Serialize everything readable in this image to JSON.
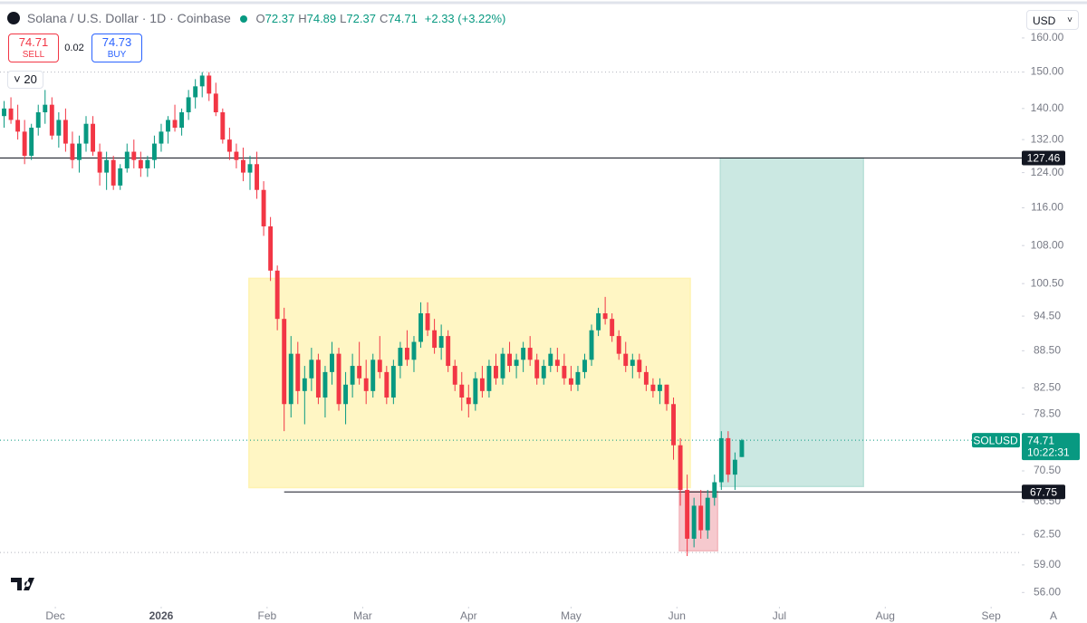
{
  "header": {
    "title": "Solana / U.S. Dollar · 1D · Coinbase",
    "ohlc": [
      {
        "label": "O",
        "value": 72.37
      },
      {
        "label": "H",
        "value": 74.89
      },
      {
        "label": "L",
        "value": 72.37
      },
      {
        "label": "C",
        "value": 74.71
      }
    ],
    "change": "+2.33 (+3.22%)"
  },
  "trade": {
    "sell": {
      "price": 74.71,
      "label": "SELL"
    },
    "spread": 0.02,
    "buy": {
      "price": 74.73,
      "label": "BUY"
    }
  },
  "indicator_count": 20,
  "currency": "USD",
  "corner": "A",
  "chart_data": {
    "type": "candlestick",
    "log_scale": true,
    "grid": false,
    "up_color": "#089981",
    "down_color": "#f23645",
    "xlim": [
      -47.2,
      252.5
    ],
    "xticks": [
      {
        "value": -31,
        "label": "Dec"
      },
      {
        "value": 0,
        "label": "2026"
      },
      {
        "value": 31,
        "label": "Feb"
      },
      {
        "value": 59,
        "label": "Mar"
      },
      {
        "value": 90,
        "label": "Apr"
      },
      {
        "value": 120,
        "label": "May"
      },
      {
        "value": 151,
        "label": "Jun"
      },
      {
        "value": 181,
        "label": "Jul"
      },
      {
        "value": 212,
        "label": "Aug"
      },
      {
        "value": 243,
        "label": "Sep"
      }
    ],
    "ylim": [
      54.7,
      169
    ],
    "yticks": [
      {
        "value": 160,
        "label": "160.00"
      },
      {
        "value": 150,
        "label": "150.00"
      },
      {
        "value": 140,
        "label": "140.00"
      },
      {
        "value": 132,
        "label": "132.00"
      },
      {
        "value": 124,
        "label": "124.00"
      },
      {
        "value": 116,
        "label": "116.00"
      },
      {
        "value": 108,
        "label": "108.00"
      },
      {
        "value": 100.5,
        "label": "100.50"
      },
      {
        "value": 94.5,
        "label": "94.50"
      },
      {
        "value": 88.5,
        "label": "88.50"
      },
      {
        "value": 82.5,
        "label": "82.50"
      },
      {
        "value": 78.5,
        "label": "78.50"
      },
      {
        "value": 70.5,
        "label": "70.50"
      },
      {
        "value": 66.5,
        "label": "66.50"
      },
      {
        "value": 62.5,
        "label": "62.50"
      },
      {
        "value": 59,
        "label": "59.00"
      },
      {
        "value": 56,
        "label": "56.00"
      }
    ],
    "x": [
      -46,
      -44,
      -42,
      -40,
      -38,
      -36,
      -34,
      -32,
      -30,
      -28,
      -26,
      -24,
      -22,
      -20,
      -18,
      -16,
      -14,
      -12,
      -10,
      -8,
      -6,
      -4,
      -2,
      0,
      2,
      4,
      6,
      8,
      10,
      12,
      14,
      16,
      18,
      20,
      22,
      24,
      26,
      28,
      30,
      32,
      34,
      36,
      38,
      40,
      42,
      44,
      46,
      48,
      50,
      52,
      54,
      56,
      58,
      60,
      62,
      64,
      66,
      68,
      70,
      72,
      74,
      76,
      78,
      80,
      82,
      84,
      86,
      88,
      90,
      92,
      94,
      96,
      98,
      100,
      102,
      104,
      106,
      108,
      110,
      112,
      114,
      116,
      118,
      120,
      122,
      124,
      126,
      128,
      130,
      132,
      134,
      136,
      138,
      140,
      142,
      144,
      146,
      148,
      150,
      152,
      154,
      156,
      158,
      160,
      162,
      164,
      166,
      168,
      170
    ],
    "candles": [
      [
        138,
        142,
        135,
        140
      ],
      [
        140,
        143,
        136,
        137
      ],
      [
        137,
        141,
        132,
        134
      ],
      [
        134,
        137,
        126,
        128
      ],
      [
        128,
        136,
        127,
        135
      ],
      [
        135,
        141,
        133,
        139
      ],
      [
        139,
        145,
        136,
        141
      ],
      [
        141,
        143,
        132,
        133
      ],
      [
        133,
        139,
        130,
        137
      ],
      [
        137,
        140,
        129,
        131
      ],
      [
        131,
        134,
        125,
        127
      ],
      [
        127,
        133,
        124,
        131
      ],
      [
        131,
        138,
        129,
        136
      ],
      [
        136,
        138,
        128,
        129
      ],
      [
        129,
        131,
        121,
        124
      ],
      [
        124,
        129,
        120,
        127
      ],
      [
        127,
        128,
        120,
        121
      ],
      [
        121,
        126,
        120,
        125
      ],
      [
        125,
        131,
        124,
        129
      ],
      [
        129,
        132,
        125,
        127
      ],
      [
        127,
        129,
        123,
        125
      ],
      [
        125,
        128,
        123,
        127
      ],
      [
        127,
        133,
        125,
        131
      ],
      [
        131,
        136,
        129,
        134
      ],
      [
        134,
        138,
        131,
        137
      ],
      [
        137,
        141,
        134,
        135
      ],
      [
        135,
        140,
        133,
        139
      ],
      [
        139,
        145,
        137,
        143
      ],
      [
        143,
        148,
        140,
        146
      ],
      [
        146,
        150,
        143,
        149
      ],
      [
        149,
        150,
        142,
        144
      ],
      [
        144,
        147,
        138,
        139
      ],
      [
        139,
        140,
        131,
        132
      ],
      [
        132,
        135,
        127,
        129
      ],
      [
        129,
        131,
        125,
        127
      ],
      [
        127,
        130,
        122,
        124
      ],
      [
        124,
        128,
        120,
        126
      ],
      [
        126,
        129,
        118,
        120
      ],
      [
        120,
        122,
        110,
        112
      ],
      [
        112,
        114,
        101,
        103
      ],
      [
        103,
        104,
        92,
        94
      ],
      [
        94,
        96,
        76,
        80
      ],
      [
        80,
        91,
        78,
        88
      ],
      [
        88,
        90,
        80,
        82
      ],
      [
        82,
        86,
        77,
        84
      ],
      [
        84,
        89,
        82,
        87
      ],
      [
        87,
        88,
        80,
        81
      ],
      [
        81,
        86,
        78,
        85
      ],
      [
        85,
        90,
        83,
        88
      ],
      [
        88,
        89,
        79,
        80
      ],
      [
        80,
        85,
        77,
        83
      ],
      [
        83,
        88,
        81,
        86
      ],
      [
        86,
        90,
        83,
        84
      ],
      [
        84,
        87,
        80,
        82
      ],
      [
        82,
        88,
        81,
        87
      ],
      [
        87,
        91,
        84,
        85
      ],
      [
        85,
        86,
        80,
        81
      ],
      [
        81,
        87,
        80,
        86
      ],
      [
        86,
        90,
        84,
        89
      ],
      [
        89,
        92,
        86,
        87
      ],
      [
        87,
        91,
        85,
        90
      ],
      [
        90,
        97,
        89,
        95
      ],
      [
        95,
        97,
        91,
        92
      ],
      [
        92,
        94,
        88,
        89
      ],
      [
        89,
        93,
        87,
        91
      ],
      [
        91,
        92,
        85,
        86
      ],
      [
        86,
        87,
        82,
        83
      ],
      [
        83,
        85,
        79,
        81
      ],
      [
        81,
        83,
        78,
        80
      ],
      [
        80,
        85,
        79,
        84
      ],
      [
        84,
        86,
        81,
        82
      ],
      [
        82,
        87,
        81,
        86
      ],
      [
        86,
        88,
        83,
        84
      ],
      [
        84,
        89,
        83,
        88
      ],
      [
        88,
        90,
        85,
        86
      ],
      [
        86,
        88,
        84,
        87
      ],
      [
        87,
        90,
        85,
        89
      ],
      [
        89,
        91,
        86,
        87
      ],
      [
        87,
        88,
        83,
        84
      ],
      [
        84,
        87,
        83,
        86
      ],
      [
        86,
        89,
        85,
        88
      ],
      [
        87,
        89,
        85,
        86
      ],
      [
        86,
        88,
        83,
        84
      ],
      [
        84,
        86,
        82,
        83
      ],
      [
        83,
        86,
        82,
        85
      ],
      [
        85,
        88,
        84,
        87
      ],
      [
        87,
        93,
        86,
        92
      ],
      [
        92,
        96,
        91,
        95
      ],
      [
        95,
        98,
        93,
        94
      ],
      [
        94,
        95,
        90,
        91
      ],
      [
        91,
        92,
        87,
        88
      ],
      [
        88,
        90,
        85,
        86
      ],
      [
        86,
        88,
        84,
        87
      ],
      [
        87,
        88,
        84,
        85
      ],
      [
        85,
        86,
        82,
        83
      ],
      [
        83,
        84,
        81,
        82
      ],
      [
        82,
        84,
        80,
        83
      ],
      [
        83,
        83,
        79,
        80
      ],
      [
        80,
        81,
        72,
        74
      ],
      [
        74,
        75,
        66,
        68
      ],
      [
        68,
        70,
        60,
        62
      ],
      [
        62,
        67,
        61,
        66
      ],
      [
        66,
        68,
        62,
        63
      ],
      [
        63,
        68,
        62,
        67
      ],
      [
        67,
        70,
        66,
        69
      ],
      [
        69,
        76,
        68,
        75
      ],
      [
        75,
        76,
        69,
        70
      ],
      [
        70,
        73,
        68,
        72
      ],
      [
        72.37,
        74.89,
        72.37,
        74.71
      ]
    ],
    "zones": [
      {
        "x": [
          25.7,
          154.9
        ],
        "y": [
          68.3,
          101.5
        ],
        "color": "#fff3b0"
      },
      {
        "x": [
          163.7,
          205.6
        ],
        "y": [
          68.45,
          127.46
        ],
        "color": "#b9e0d8"
      },
      {
        "x": [
          151.7,
          162.9
        ],
        "y": [
          60.6,
          67.8
        ],
        "color": "#f3b7bd"
      }
    ],
    "levels": [
      {
        "value": 127.46
      },
      {
        "value": 67.75,
        "from": 36
      }
    ],
    "dotted_levels": [
      150,
      60.4
    ],
    "last_price": {
      "symbol": "SOLUSD",
      "value": 74.71,
      "countdown": "10:22:31"
    }
  }
}
